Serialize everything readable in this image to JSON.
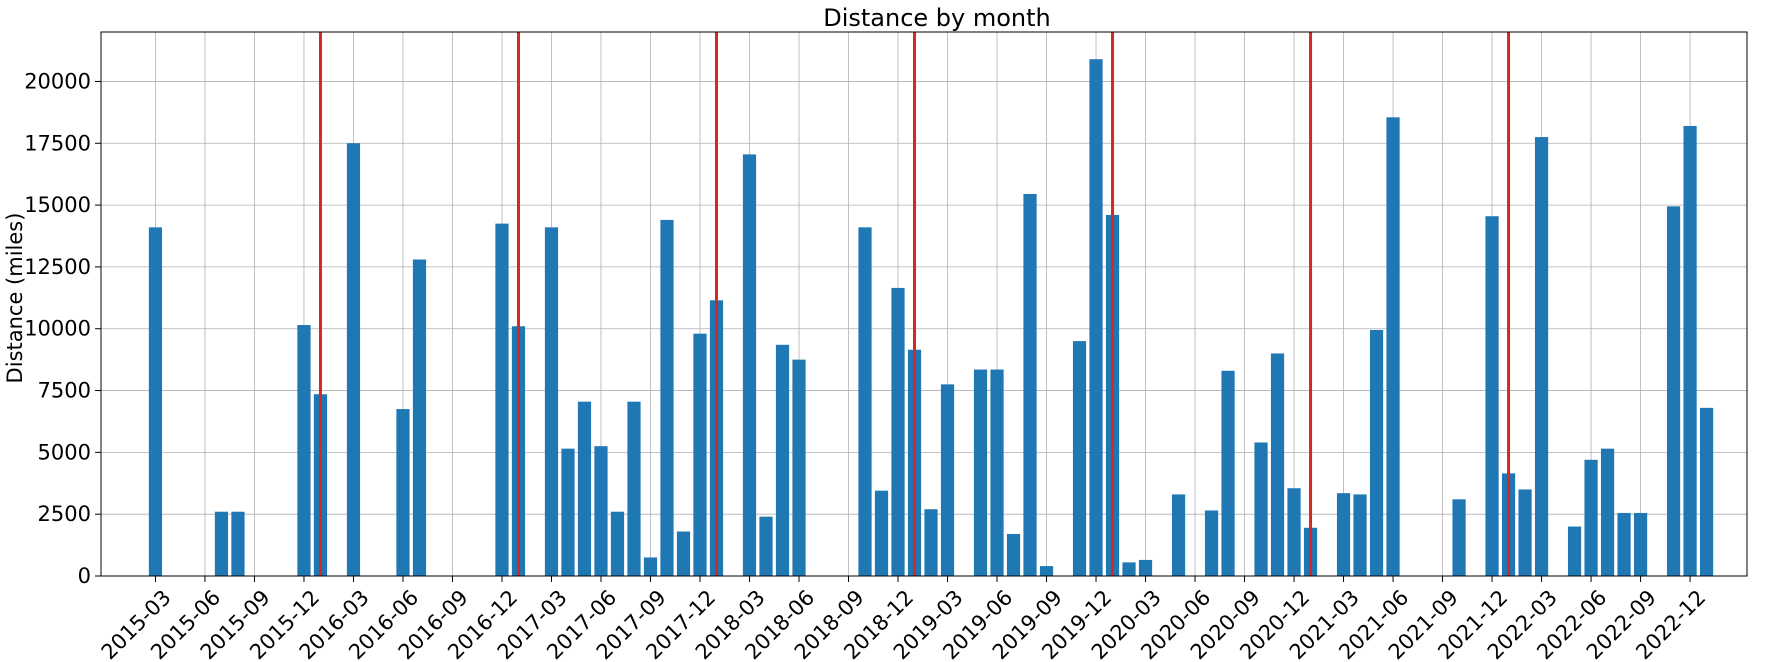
{
  "chart_data": {
    "type": "bar",
    "title": "Distance by month",
    "xlabel": "",
    "ylabel": "Distance (miles)",
    "ylim": [
      0,
      22000
    ],
    "grid": true,
    "x_tick_labels": [
      "2015-03",
      "2015-06",
      "2015-09",
      "2015-12",
      "2016-03",
      "2016-06",
      "2016-09",
      "2016-12",
      "2017-03",
      "2017-06",
      "2017-09",
      "2017-12",
      "2018-03",
      "2018-06",
      "2018-09",
      "2018-12",
      "2019-03",
      "2019-06",
      "2019-09",
      "2019-12",
      "2020-03",
      "2020-06",
      "2020-09",
      "2020-12",
      "2021-03",
      "2021-06",
      "2021-09",
      "2021-12",
      "2022-03",
      "2022-06",
      "2022-09",
      "2022-12"
    ],
    "y_tick_labels": [
      "0",
      "2500",
      "5000",
      "7500",
      "10000",
      "12500",
      "15000",
      "17500",
      "20000"
    ],
    "y_ticks": [
      0,
      2500,
      5000,
      7500,
      10000,
      12500,
      15000,
      17500,
      20000
    ],
    "bar_color": "#1f77b4",
    "vline_color": "#d62728",
    "vertical_lines": [
      "2016-01",
      "2017-01",
      "2018-01",
      "2019-01",
      "2020-01",
      "2021-01",
      "2022-01"
    ],
    "bars": [
      {
        "x": "2015-03",
        "value": 14100
      },
      {
        "x": "2015-07",
        "value": 2600
      },
      {
        "x": "2015-08",
        "value": 2600
      },
      {
        "x": "2015-12",
        "value": 10150
      },
      {
        "x": "2016-01",
        "value": 7350
      },
      {
        "x": "2016-03",
        "value": 17500
      },
      {
        "x": "2016-06",
        "value": 6750
      },
      {
        "x": "2016-07",
        "value": 12800
      },
      {
        "x": "2016-12",
        "value": 14250
      },
      {
        "x": "2017-01",
        "value": 10100
      },
      {
        "x": "2017-03",
        "value": 14100
      },
      {
        "x": "2017-04",
        "value": 5150
      },
      {
        "x": "2017-05",
        "value": 7050
      },
      {
        "x": "2017-06",
        "value": 5250
      },
      {
        "x": "2017-07",
        "value": 2600
      },
      {
        "x": "2017-08",
        "value": 7050
      },
      {
        "x": "2017-09",
        "value": 750
      },
      {
        "x": "2017-10",
        "value": 14400
      },
      {
        "x": "2017-11",
        "value": 1800
      },
      {
        "x": "2017-12",
        "value": 9800
      },
      {
        "x": "2018-01",
        "value": 11150
      },
      {
        "x": "2018-03",
        "value": 17050
      },
      {
        "x": "2018-04",
        "value": 2400
      },
      {
        "x": "2018-05",
        "value": 9350
      },
      {
        "x": "2018-06",
        "value": 8750
      },
      {
        "x": "2018-10",
        "value": 14100
      },
      {
        "x": "2018-11",
        "value": 3450
      },
      {
        "x": "2018-12",
        "value": 11650
      },
      {
        "x": "2019-01",
        "value": 9150
      },
      {
        "x": "2019-02",
        "value": 2700
      },
      {
        "x": "2019-03",
        "value": 7750
      },
      {
        "x": "2019-05",
        "value": 8350
      },
      {
        "x": "2019-06",
        "value": 8350
      },
      {
        "x": "2019-07",
        "value": 1700
      },
      {
        "x": "2019-08",
        "value": 15450
      },
      {
        "x": "2019-09",
        "value": 400
      },
      {
        "x": "2019-11",
        "value": 9500
      },
      {
        "x": "2019-12",
        "value": 20900
      },
      {
        "x": "2020-01",
        "value": 14600
      },
      {
        "x": "2020-02",
        "value": 550
      },
      {
        "x": "2020-03",
        "value": 650
      },
      {
        "x": "2020-05",
        "value": 3300
      },
      {
        "x": "2020-07",
        "value": 2650
      },
      {
        "x": "2020-08",
        "value": 8300
      },
      {
        "x": "2020-10",
        "value": 5400
      },
      {
        "x": "2020-11",
        "value": 9000
      },
      {
        "x": "2020-12",
        "value": 3550
      },
      {
        "x": "2021-01",
        "value": 1950
      },
      {
        "x": "2021-03",
        "value": 3350
      },
      {
        "x": "2021-04",
        "value": 3300
      },
      {
        "x": "2021-05",
        "value": 9950
      },
      {
        "x": "2021-06",
        "value": 18550
      },
      {
        "x": "2021-10",
        "value": 3100
      },
      {
        "x": "2021-12",
        "value": 14550
      },
      {
        "x": "2022-01",
        "value": 4150
      },
      {
        "x": "2022-02",
        "value": 3500
      },
      {
        "x": "2022-03",
        "value": 17750
      },
      {
        "x": "2022-05",
        "value": 2000
      },
      {
        "x": "2022-06",
        "value": 4700
      },
      {
        "x": "2022-07",
        "value": 5150
      },
      {
        "x": "2022-08",
        "value": 2550
      },
      {
        "x": "2022-09",
        "value": 2550
      },
      {
        "x": "2022-11",
        "value": 14950
      },
      {
        "x": "2022-12",
        "value": 18200
      },
      {
        "x": "2023-01",
        "value": 6800
      }
    ]
  }
}
